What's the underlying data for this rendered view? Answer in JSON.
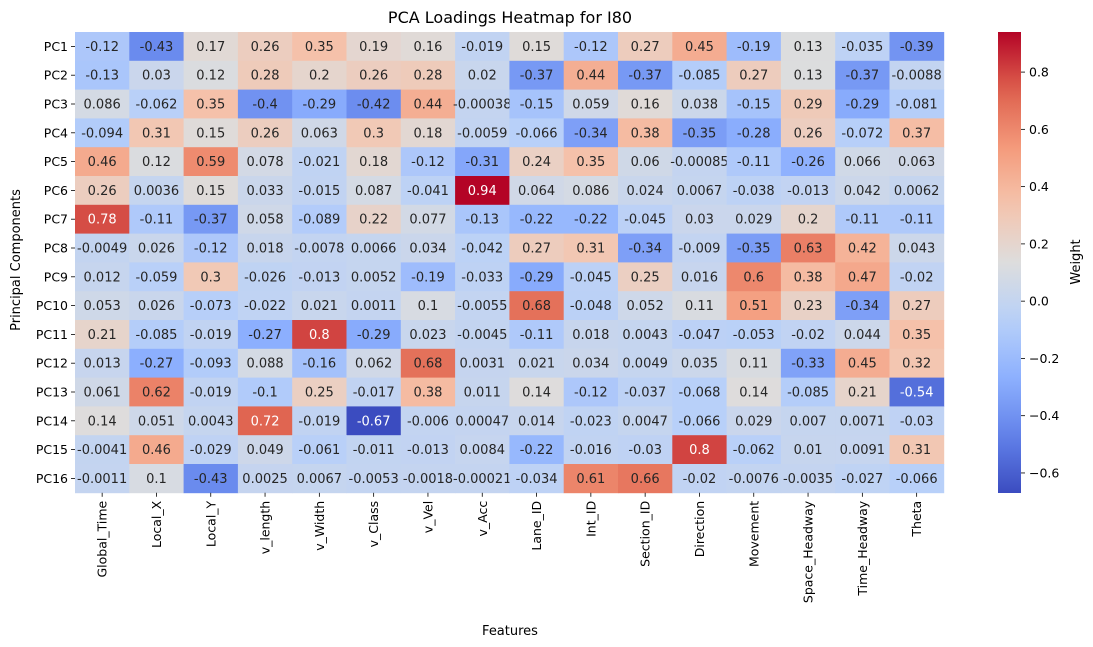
{
  "chart_data": {
    "type": "heatmap",
    "title": "PCA Loadings Heatmap for I80",
    "xlabel": "Features",
    "ylabel": "Principal Components",
    "x_categories": [
      "Global_Time",
      "Local_X",
      "Local_Y",
      "v_length",
      "v_Width",
      "v_Class",
      "v_Vel",
      "v_Acc",
      "Lane_ID",
      "Int_ID",
      "Section_ID",
      "Direction",
      "Movement",
      "Space_Headway",
      "Time_Headway",
      "Theta"
    ],
    "y_categories": [
      "PC1",
      "PC2",
      "PC3",
      "PC4",
      "PC5",
      "PC6",
      "PC7",
      "PC8",
      "PC9",
      "PC10",
      "PC11",
      "PC12",
      "PC13",
      "PC14",
      "PC15",
      "PC16"
    ],
    "values": [
      [
        "-0.12",
        "-0.43",
        "0.17",
        "0.26",
        "0.35",
        "0.19",
        "0.16",
        "-0.019",
        "0.15",
        "-0.12",
        "0.27",
        "0.45",
        "-0.19",
        "0.13",
        "-0.035",
        "-0.39"
      ],
      [
        "-0.13",
        "0.03",
        "0.12",
        "0.28",
        "0.2",
        "0.26",
        "0.28",
        "0.02",
        "-0.37",
        "0.44",
        "-0.37",
        "-0.085",
        "0.27",
        "0.13",
        "-0.37",
        "-0.0088"
      ],
      [
        "0.086",
        "-0.062",
        "0.35",
        "-0.4",
        "-0.29",
        "-0.42",
        "0.44",
        "-0.00038",
        "-0.15",
        "0.059",
        "0.16",
        "0.038",
        "-0.15",
        "0.29",
        "-0.29",
        "-0.081"
      ],
      [
        "-0.094",
        "0.31",
        "0.15",
        "0.26",
        "0.063",
        "0.3",
        "0.18",
        "-0.0059",
        "-0.066",
        "-0.34",
        "0.38",
        "-0.35",
        "-0.28",
        "0.26",
        "-0.072",
        "0.37"
      ],
      [
        "0.46",
        "0.12",
        "0.59",
        "0.078",
        "-0.021",
        "0.18",
        "-0.12",
        "-0.31",
        "0.24",
        "0.35",
        "0.06",
        "-0.00085",
        "-0.11",
        "-0.26",
        "0.066",
        "0.063"
      ],
      [
        "0.26",
        "0.0036",
        "0.15",
        "0.033",
        "-0.015",
        "0.087",
        "-0.041",
        "0.94",
        "0.064",
        "0.086",
        "0.024",
        "0.0067",
        "-0.038",
        "-0.013",
        "0.042",
        "0.0062"
      ],
      [
        "0.78",
        "-0.11",
        "-0.37",
        "0.058",
        "-0.089",
        "0.22",
        "0.077",
        "-0.13",
        "-0.22",
        "-0.22",
        "-0.045",
        "0.03",
        "0.029",
        "0.2",
        "-0.11",
        "-0.11"
      ],
      [
        "-0.0049",
        "0.026",
        "-0.12",
        "0.018",
        "-0.0078",
        "0.0066",
        "0.034",
        "-0.042",
        "0.27",
        "0.31",
        "-0.34",
        "-0.009",
        "-0.35",
        "0.63",
        "0.42",
        "0.043"
      ],
      [
        "0.012",
        "-0.059",
        "0.3",
        "-0.026",
        "-0.013",
        "0.0052",
        "-0.19",
        "-0.033",
        "-0.29",
        "-0.045",
        "0.25",
        "0.016",
        "0.6",
        "0.38",
        "0.47",
        "-0.02"
      ],
      [
        "0.053",
        "0.026",
        "-0.073",
        "-0.022",
        "0.021",
        "0.0011",
        "0.1",
        "-0.0055",
        "0.68",
        "-0.048",
        "0.052",
        "0.11",
        "0.51",
        "0.23",
        "-0.34",
        "0.27"
      ],
      [
        "0.21",
        "-0.085",
        "-0.019",
        "-0.27",
        "0.8",
        "-0.29",
        "0.023",
        "-0.0045",
        "-0.11",
        "0.018",
        "0.0043",
        "-0.047",
        "-0.053",
        "-0.02",
        "0.044",
        "0.35"
      ],
      [
        "0.013",
        "-0.27",
        "-0.093",
        "0.088",
        "-0.16",
        "0.062",
        "0.68",
        "0.0031",
        "0.021",
        "0.034",
        "0.0049",
        "0.035",
        "0.11",
        "-0.33",
        "0.45",
        "0.32"
      ],
      [
        "0.061",
        "0.62",
        "-0.019",
        "-0.1",
        "0.25",
        "-0.017",
        "0.38",
        "0.011",
        "0.14",
        "-0.12",
        "-0.037",
        "-0.068",
        "0.14",
        "-0.085",
        "0.21",
        "-0.54"
      ],
      [
        "0.14",
        "0.051",
        "0.0043",
        "0.72",
        "-0.019",
        "-0.67",
        "-0.006",
        "0.00047",
        "0.014",
        "-0.023",
        "0.0047",
        "-0.066",
        "0.029",
        "0.007",
        "0.0071",
        "-0.03"
      ],
      [
        "-0.0041",
        "0.46",
        "-0.029",
        "0.049",
        "-0.061",
        "-0.011",
        "-0.013",
        "0.0084",
        "-0.22",
        "-0.016",
        "-0.03",
        "0.8",
        "-0.062",
        "0.01",
        "0.0091",
        "0.31"
      ],
      [
        "-0.0011",
        "0.1",
        "-0.43",
        "0.0025",
        "0.0067",
        "-0.0053",
        "-0.0018",
        "-0.00021",
        "-0.034",
        "0.61",
        "0.66",
        "-0.02",
        "-0.0076",
        "-0.0035",
        "-0.027",
        "-0.066"
      ]
    ],
    "vmin": -0.67,
    "vmax": 0.94,
    "colormap": "coolwarm",
    "colorbar": {
      "label": "Weight",
      "ticks": [
        "0.8",
        "0.6",
        "0.4",
        "0.2",
        "0.0",
        "−0.2",
        "−0.4",
        "−0.6"
      ]
    },
    "grid": false
  }
}
